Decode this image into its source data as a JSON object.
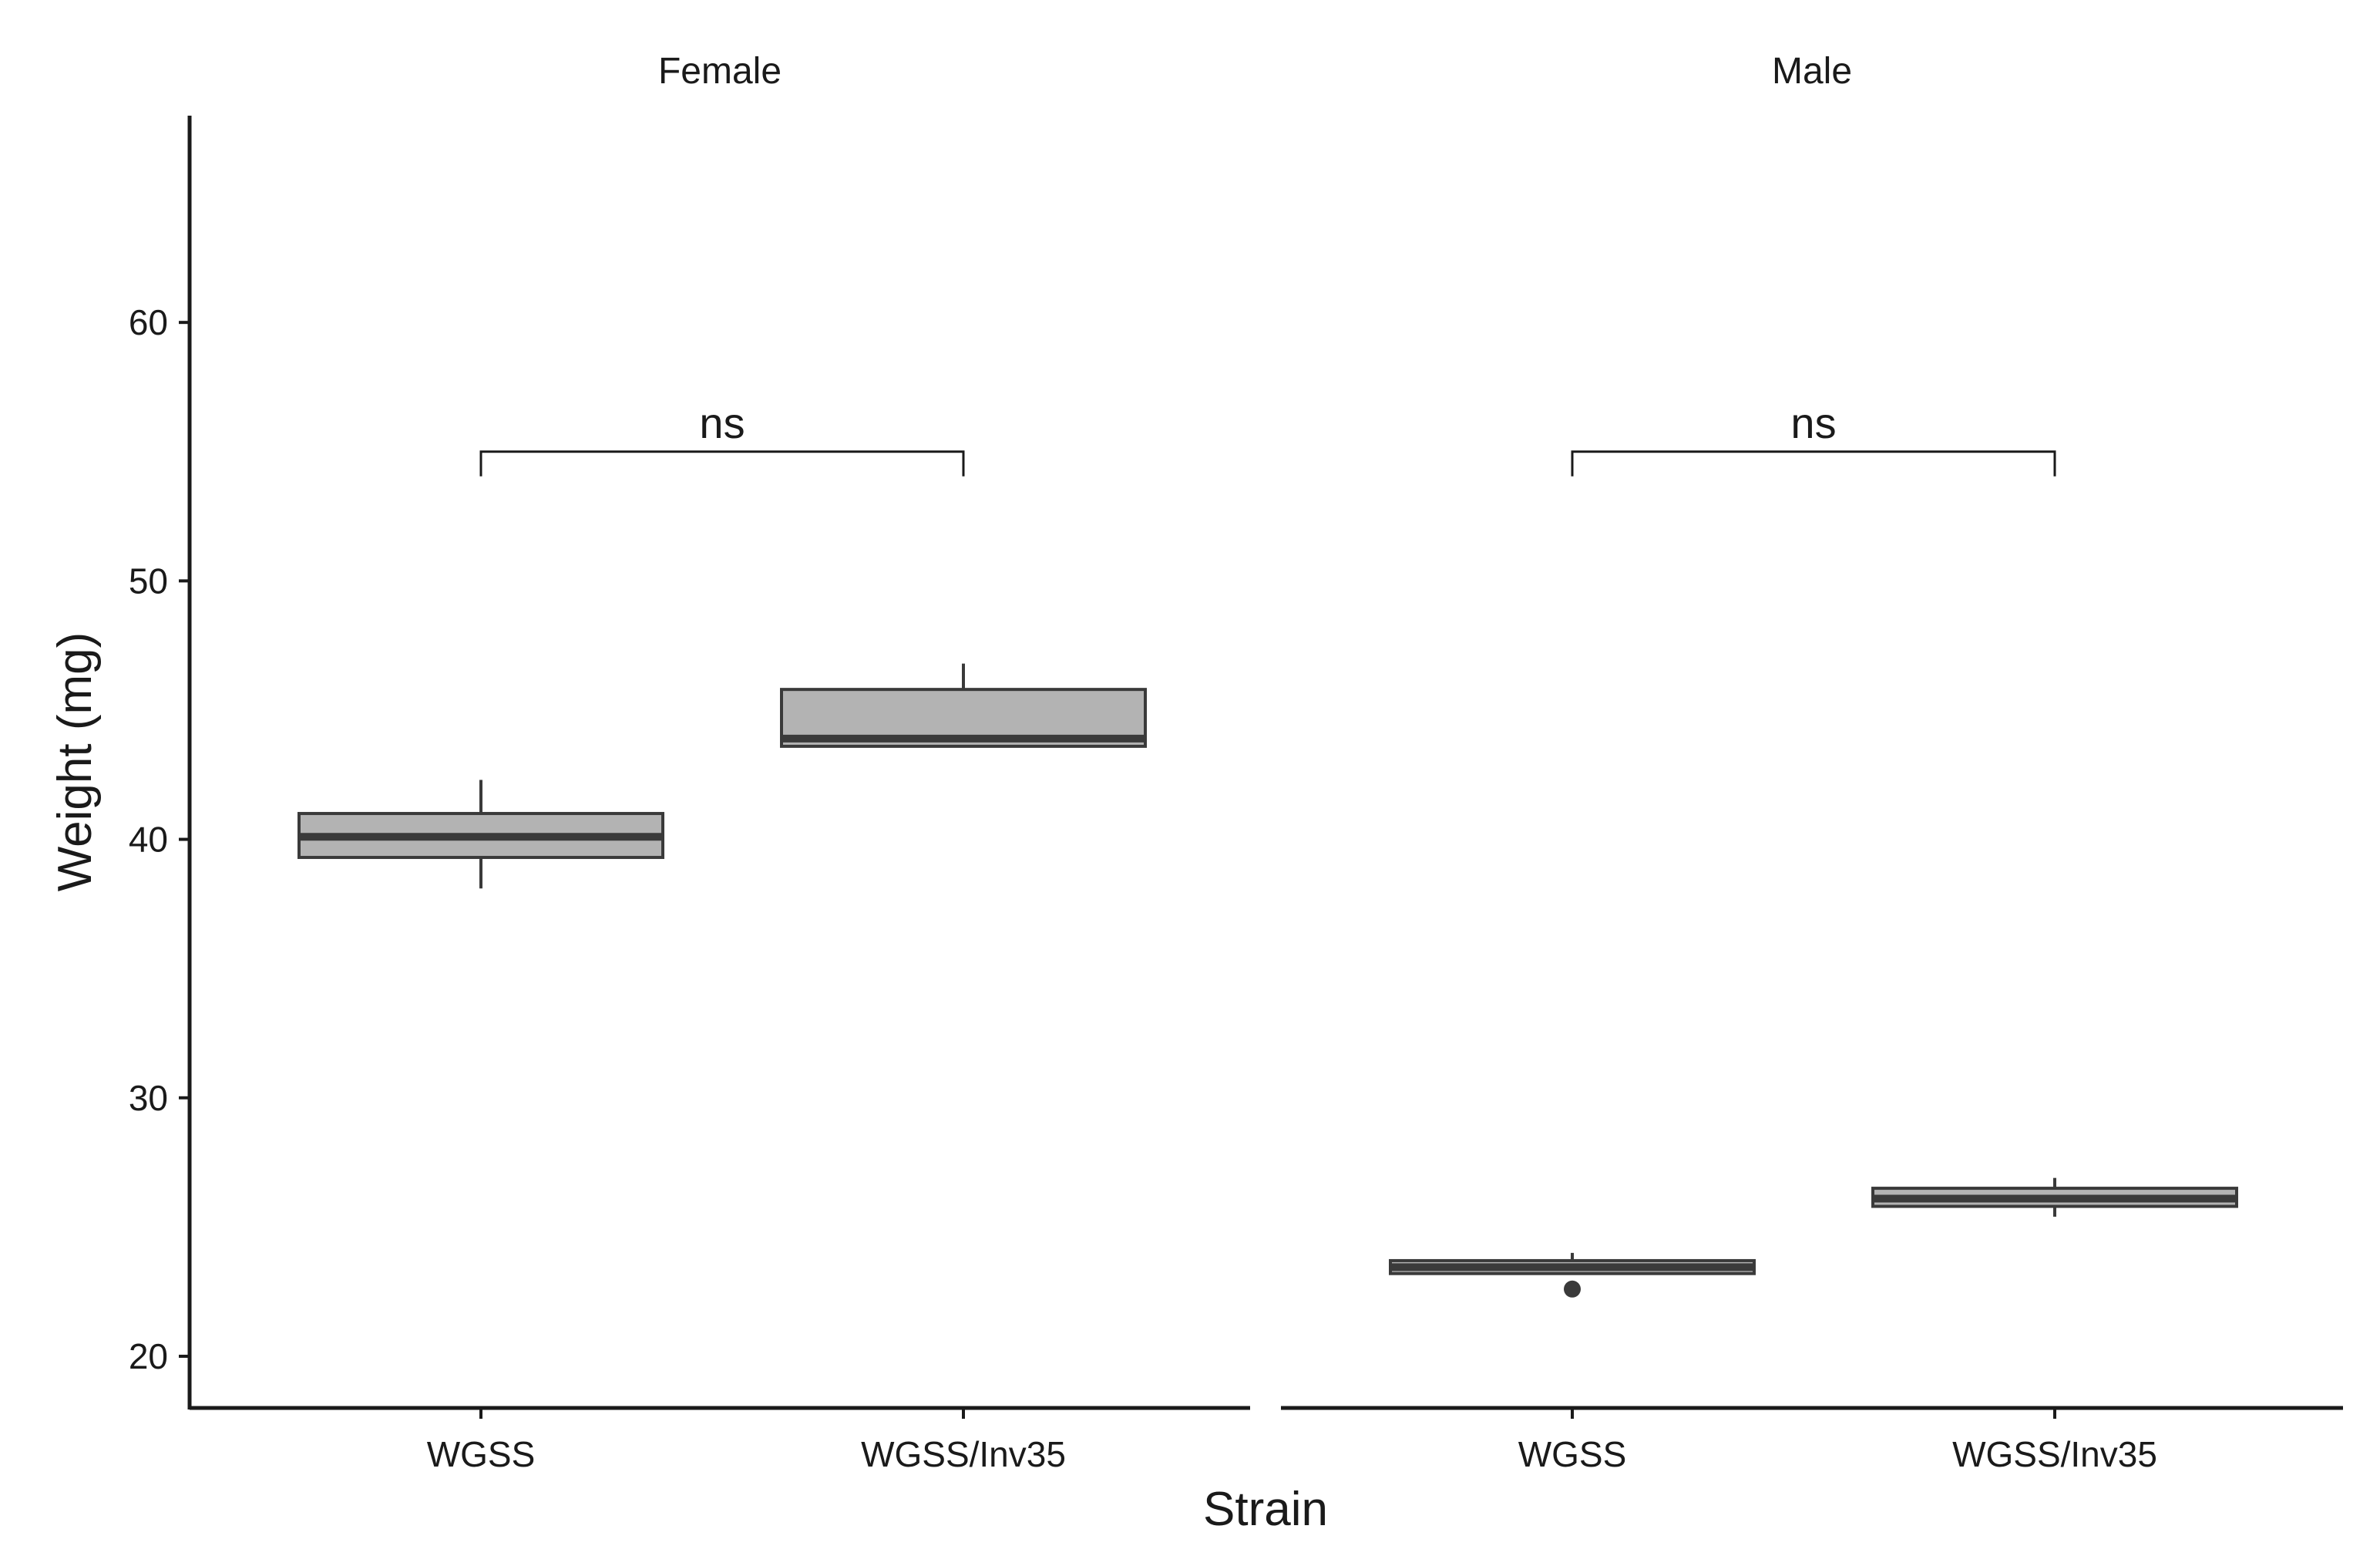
{
  "chart_data": {
    "type": "boxplot",
    "xlabel": "Strain",
    "ylabel": "Weight (mg)",
    "ylim": [
      18,
      68
    ],
    "yticks": [
      20,
      30,
      40,
      50,
      60
    ],
    "categories": [
      "WGSS",
      "WGSS/Inv35"
    ],
    "colors": {
      "box_fill": "#b3b3b3",
      "box_stroke": "#3a3a3a",
      "axis": "#1a1a1a"
    },
    "panels": [
      {
        "label": "Female",
        "boxes": [
          {
            "category": "WGSS",
            "whisker_low": 38.1,
            "q1": 39.3,
            "median": 40.1,
            "q3": 41.0,
            "whisker_high": 42.3,
            "outliers": []
          },
          {
            "category": "WGSS/Inv35",
            "whisker_low": 43.6,
            "q1": 43.6,
            "median": 43.9,
            "q3": 45.8,
            "whisker_high": 46.8,
            "outliers": []
          }
        ],
        "comparison": {
          "from": "WGSS",
          "to": "WGSS/Inv35",
          "y": 55,
          "label": "ns"
        }
      },
      {
        "label": "Male",
        "boxes": [
          {
            "category": "WGSS",
            "whisker_low": 23.2,
            "q1": 23.2,
            "median": 23.45,
            "q3": 23.7,
            "whisker_high": 24.0,
            "outliers": [
              22.6
            ]
          },
          {
            "category": "WGSS/Inv35",
            "whisker_low": 25.4,
            "q1": 25.8,
            "median": 26.1,
            "q3": 26.5,
            "whisker_high": 26.9,
            "outliers": []
          }
        ],
        "comparison": {
          "from": "WGSS",
          "to": "WGSS/Inv35",
          "y": 55,
          "label": "ns"
        }
      }
    ]
  }
}
